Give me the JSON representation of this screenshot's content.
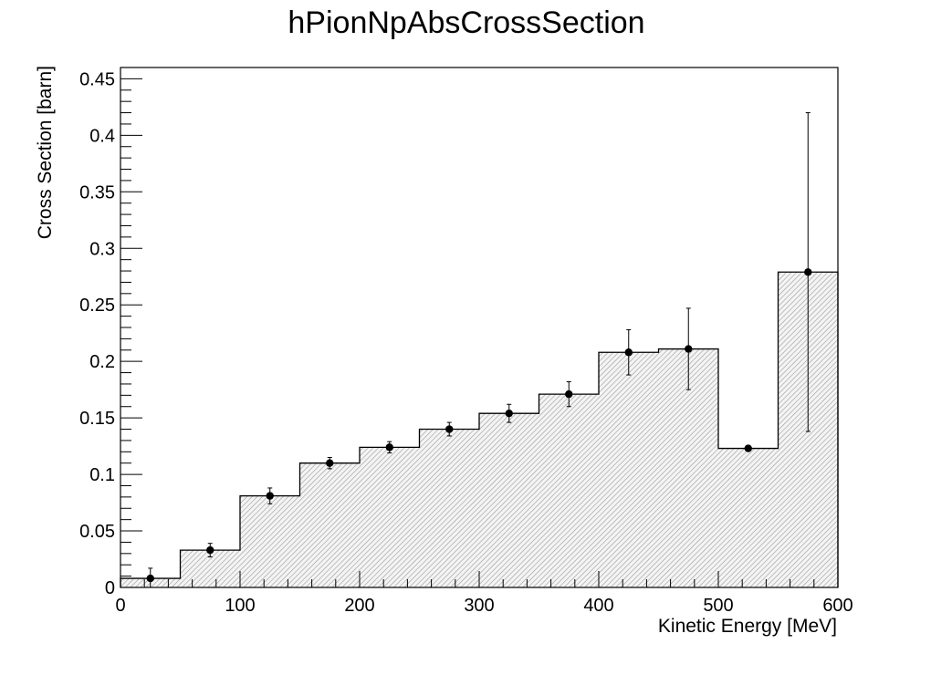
{
  "chart_data": {
    "type": "bar",
    "style": "step-histogram-with-error-bars",
    "title": "hPionNpAbsCrossSection",
    "xlabel": "Kinetic Energy [MeV]",
    "ylabel": "Cross Section [barn]",
    "xlim": [
      0,
      600
    ],
    "ylim": [
      0,
      0.46
    ],
    "bin_width": 50,
    "x_ticks": [
      0,
      100,
      200,
      300,
      400,
      500,
      600
    ],
    "x_tick_labels": [
      "0",
      "100",
      "200",
      "300",
      "400",
      "500",
      "600"
    ],
    "y_ticks": [
      0,
      0.05,
      0.1,
      0.15,
      0.2,
      0.25,
      0.3,
      0.35,
      0.4,
      0.45
    ],
    "y_tick_labels": [
      "0",
      "0.05",
      "0.1",
      "0.15",
      "0.2",
      "0.25",
      "0.3",
      "0.35",
      "0.4",
      "0.45"
    ],
    "bin_centers": [
      25,
      75,
      125,
      175,
      225,
      275,
      325,
      375,
      425,
      475,
      525,
      575
    ],
    "values": [
      0.008,
      0.033,
      0.081,
      0.11,
      0.124,
      0.14,
      0.154,
      0.171,
      0.208,
      0.211,
      0.123,
      0.279
    ],
    "errors": [
      0.009,
      0.006,
      0.007,
      0.005,
      0.005,
      0.006,
      0.008,
      0.011,
      0.02,
      0.036,
      0.001,
      0.141
    ],
    "fill_color": "#c8c8c8",
    "line_color": "#000000",
    "grid": false,
    "legend": "none"
  }
}
